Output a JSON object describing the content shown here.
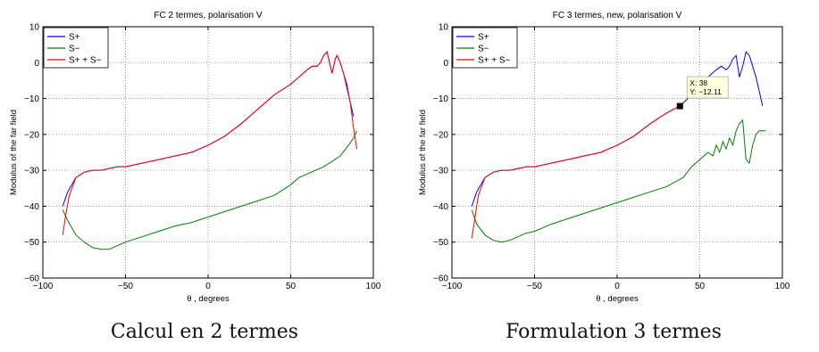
{
  "chart_data": [
    {
      "type": "line",
      "title": "FC 2 termes, polarisation V",
      "xlabel": "θ , degrees",
      "ylabel": "Modulus of the far field",
      "xlim": [
        -100,
        100
      ],
      "ylim": [
        -60,
        10
      ],
      "xticks": [
        "−100",
        "−50",
        "0",
        "50",
        "100"
      ],
      "yticks": [
        "10",
        "0",
        "−10",
        "−20",
        "−30",
        "−40",
        "−50",
        "−60"
      ],
      "grid": true,
      "legend": "top-left",
      "caption": "Calcul en 2 termes",
      "series": [
        {
          "name": "S+",
          "color": "#0000ff",
          "x": [
            -88,
            -85,
            -80,
            -75,
            -70,
            -65,
            -60,
            -55,
            -50,
            -40,
            -30,
            -20,
            -10,
            0,
            10,
            20,
            30,
            40,
            50,
            55,
            60,
            63,
            66,
            68,
            70,
            72,
            74,
            75,
            77,
            78,
            80,
            82,
            84,
            86,
            88
          ],
          "y": [
            -40,
            -36,
            -32,
            -30.5,
            -30,
            -30,
            -29.5,
            -29,
            -29,
            -28,
            -27,
            -26,
            -25,
            -23,
            -20.5,
            -17,
            -13,
            -9,
            -6,
            -4,
            -2,
            -1,
            -1,
            0,
            2,
            3,
            -1,
            -3,
            1,
            2,
            0,
            -3,
            -7,
            -11,
            -15
          ]
        },
        {
          "name": "S−",
          "color": "#008000",
          "x": [
            -88,
            -85,
            -80,
            -75,
            -70,
            -65,
            -60,
            -55,
            -50,
            -40,
            -30,
            -20,
            -10,
            0,
            10,
            20,
            30,
            40,
            50,
            55,
            60,
            65,
            70,
            75,
            80,
            85,
            88,
            90
          ],
          "y": [
            -41,
            -44,
            -48,
            -50,
            -51.5,
            -52,
            -52,
            -51,
            -50,
            -48.5,
            -47,
            -45.5,
            -44.5,
            -43,
            -41.5,
            -40,
            -38.5,
            -37,
            -34,
            -32,
            -31,
            -30,
            -29,
            -27.5,
            -26,
            -23,
            -21,
            -19
          ]
        },
        {
          "name": "S+ + S−",
          "color": "#ff0000",
          "x": [
            -88,
            -86,
            -84,
            -80,
            -75,
            -70,
            -65,
            -60,
            -55,
            -50,
            -40,
            -30,
            -20,
            -10,
            0,
            10,
            20,
            30,
            40,
            50,
            55,
            60,
            63,
            66,
            68,
            70,
            72,
            74,
            75,
            77,
            78,
            80,
            82,
            84,
            86,
            88,
            90
          ],
          "y": [
            -48,
            -42,
            -37,
            -32,
            -30.5,
            -30,
            -30,
            -29.5,
            -29,
            -29,
            -28,
            -27,
            -26,
            -25,
            -23,
            -20.5,
            -17,
            -13,
            -9,
            -6,
            -4,
            -2,
            -1,
            -1,
            0,
            2,
            3,
            -1,
            -3,
            1,
            2,
            0,
            -3,
            -6,
            -11,
            -18,
            -24
          ]
        }
      ]
    },
    {
      "type": "line",
      "title": "FC 3 termes, new, polarisation V",
      "xlabel": "θ , degrees",
      "ylabel": "Modulus of the far field",
      "xlim": [
        -100,
        100
      ],
      "ylim": [
        -60,
        10
      ],
      "xticks": [
        "−100",
        "−50",
        "0",
        "50",
        "100"
      ],
      "yticks": [
        "10",
        "0",
        "−10",
        "−20",
        "−30",
        "−40",
        "−50",
        "−60"
      ],
      "grid": true,
      "legend": "top-left",
      "caption": "Formulation 3 termes",
      "datatip": {
        "x": 38,
        "y": -12.11,
        "line1": "X: 38",
        "line2": "Y: −12.11"
      },
      "series": [
        {
          "name": "S+",
          "color": "#0000ff",
          "x": [
            -88,
            -85,
            -80,
            -75,
            -70,
            -65,
            -60,
            -55,
            -50,
            -40,
            -30,
            -20,
            -10,
            0,
            10,
            20,
            30,
            38,
            45,
            50,
            55,
            60,
            63,
            66,
            68,
            70,
            72,
            74,
            76,
            78,
            80,
            82,
            84,
            86,
            88
          ],
          "y": [
            -40,
            -36,
            -32,
            -30.5,
            -30,
            -30,
            -29.5,
            -29,
            -29,
            -28,
            -27,
            -26,
            -25,
            -23,
            -20.5,
            -17,
            -14,
            -12.1,
            -9,
            -6,
            -4,
            -2,
            -1,
            -2,
            -1,
            1,
            2,
            -4,
            -1,
            3,
            2,
            -1,
            -4,
            -8,
            -12
          ]
        },
        {
          "name": "S−",
          "color": "#008000",
          "x": [
            -88,
            -85,
            -80,
            -75,
            -70,
            -65,
            -60,
            -55,
            -50,
            -40,
            -30,
            -20,
            -10,
            0,
            10,
            20,
            30,
            40,
            45,
            50,
            55,
            58,
            60,
            62,
            64,
            66,
            68,
            70,
            72,
            74,
            76,
            78,
            80,
            82,
            84,
            86,
            88,
            90
          ],
          "y": [
            -41,
            -45,
            -48,
            -49.5,
            -50,
            -49.5,
            -48.5,
            -47.5,
            -47,
            -45,
            -43.5,
            -42,
            -40.5,
            -39,
            -37.5,
            -36,
            -34.5,
            -32,
            -29,
            -27,
            -25,
            -26,
            -23,
            -25,
            -22,
            -24,
            -21,
            -23,
            -19,
            -17,
            -16,
            -27,
            -28,
            -23,
            -20,
            -19,
            -19,
            -19
          ]
        },
        {
          "name": "S+ + S−",
          "color": "#ff0000",
          "x": [
            -88,
            -86,
            -84,
            -80,
            -75,
            -70,
            -65,
            -60,
            -55,
            -50,
            -40,
            -30,
            -20,
            -10,
            0,
            10,
            20,
            30,
            38
          ],
          "y": [
            -49,
            -43,
            -37,
            -32,
            -30.5,
            -30,
            -30,
            -29.5,
            -29,
            -29,
            -28,
            -27,
            -26,
            -25,
            -23,
            -20.5,
            -17,
            -14,
            -12.1
          ]
        }
      ]
    }
  ]
}
